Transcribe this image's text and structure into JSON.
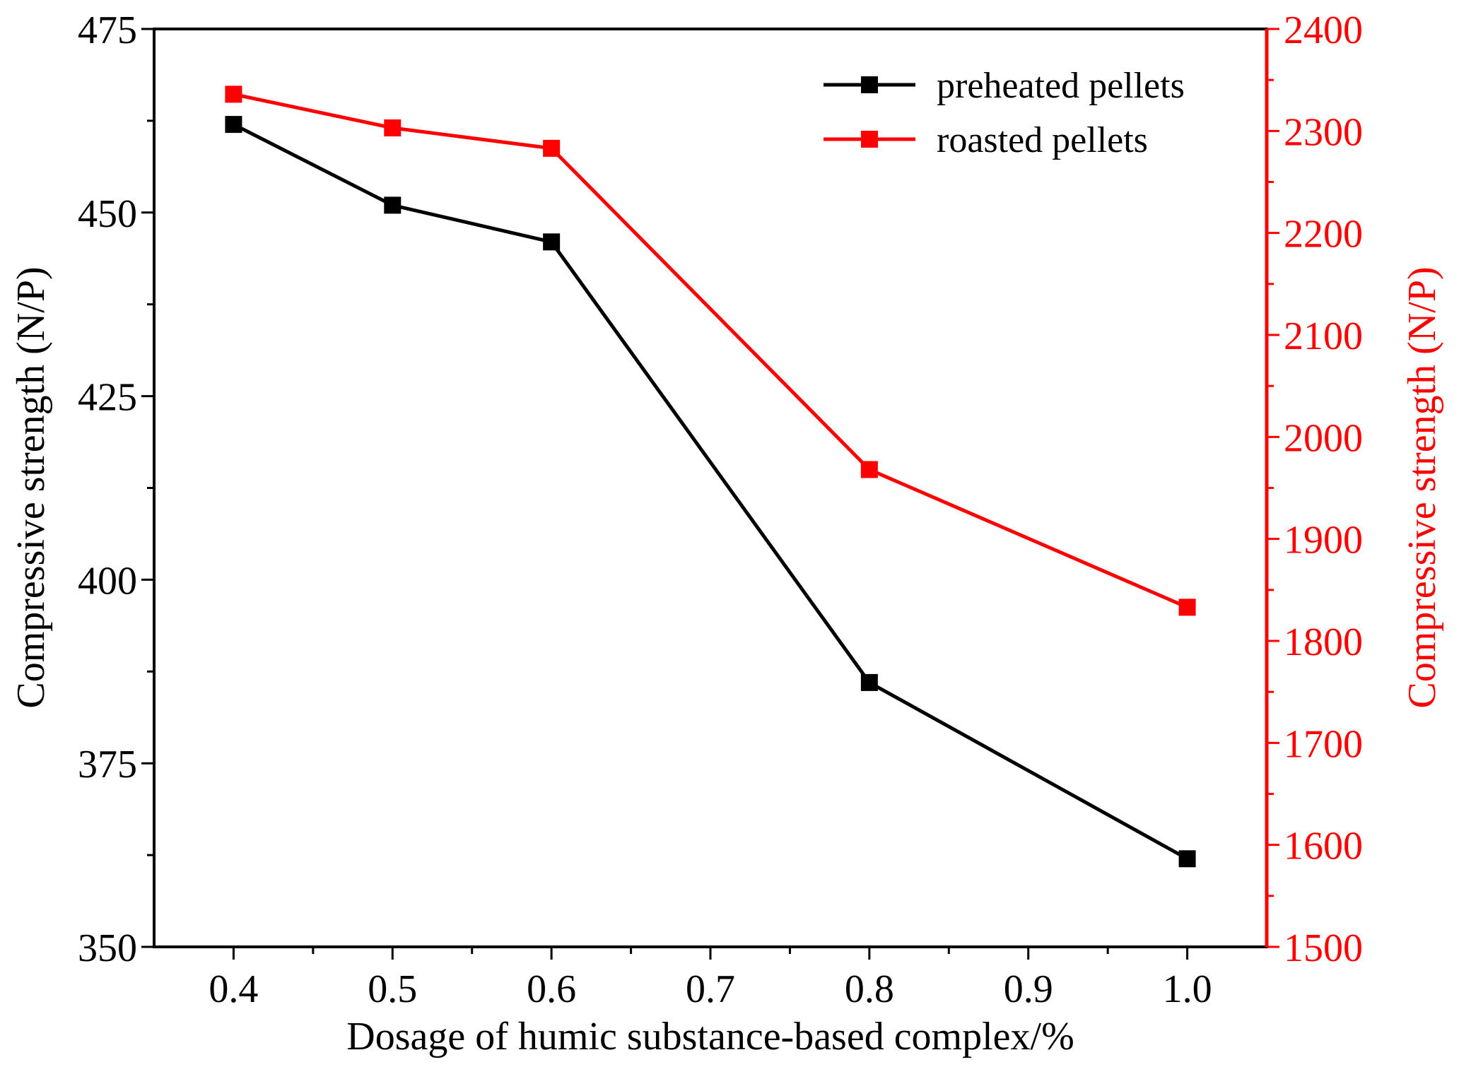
{
  "chart_data": {
    "type": "line",
    "xlabel": "Dosage of humic substance-based complex/%",
    "x": [
      0.4,
      0.5,
      0.6,
      0.8,
      1.0
    ],
    "xlim": [
      0.35,
      1.05
    ],
    "xticks": [
      "0.4",
      "0.5",
      "0.6",
      "0.7",
      "0.8",
      "0.9",
      "1.0"
    ],
    "left_axis": {
      "label": "Compressive strength (N/P)",
      "ylim": [
        350,
        475
      ],
      "ticks": [
        "350",
        "375",
        "400",
        "425",
        "450",
        "475"
      ],
      "color": "#000000"
    },
    "right_axis": {
      "label": "Compressive strength (N/P)",
      "ylim": [
        1500,
        2400
      ],
      "ticks": [
        "1500",
        "1600",
        "1700",
        "1800",
        "1900",
        "2000",
        "2100",
        "2200",
        "2300",
        "2400"
      ],
      "color": "#ff0000"
    },
    "series": [
      {
        "name": "preheated pellets",
        "axis": "left",
        "color": "#000000",
        "values": [
          462,
          451,
          446,
          386,
          362
        ]
      },
      {
        "name": "roasted pellets",
        "axis": "right",
        "color": "#ff0000",
        "values": [
          2336,
          2303,
          2283,
          1968,
          1833
        ]
      }
    ],
    "legend": "top-right"
  }
}
